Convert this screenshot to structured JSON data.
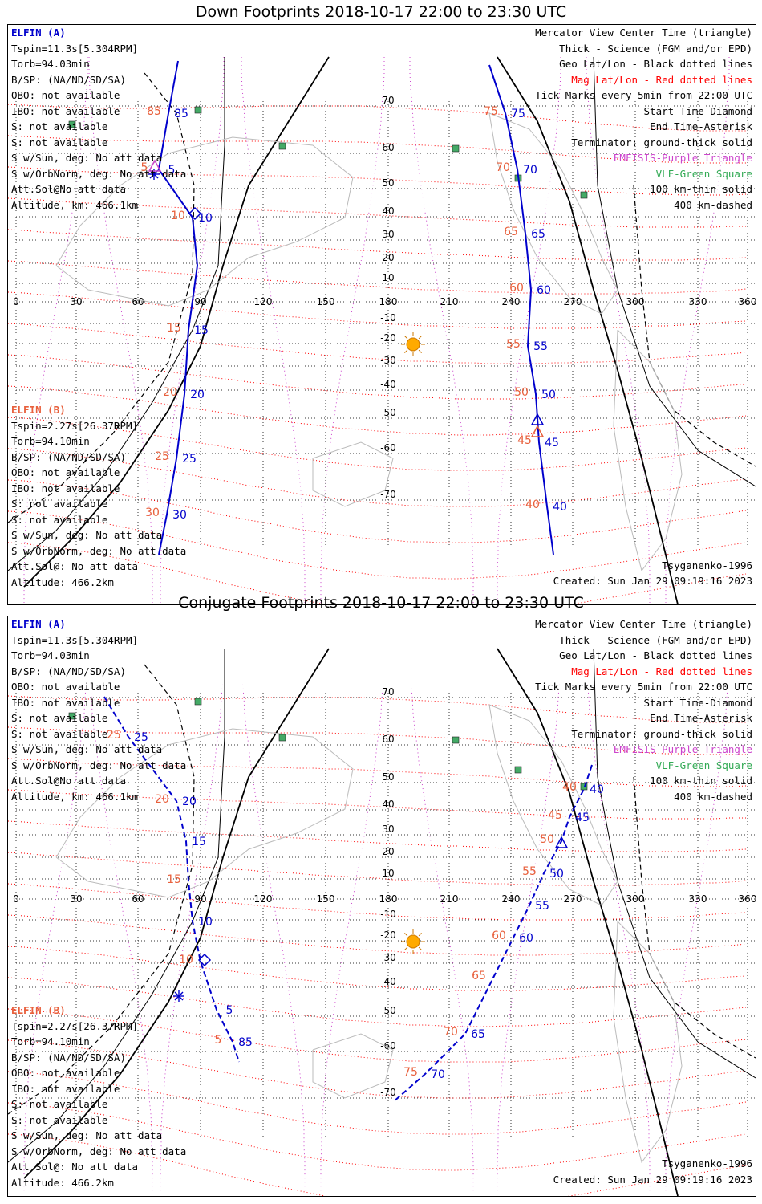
{
  "panels": [
    {
      "title": "Down Footprints 2018-10-17 22:00 to 23:30 UTC",
      "elfin_a": {
        "name": "ELFIN (A)",
        "lines": [
          "Tspin=11.3s[5.304RPM]",
          "Torb=94.03min",
          "B/SP: (NA/ND/SD/SA)",
          "OBO: not available",
          "IBO: not available",
          "S: not available",
          "S: not available",
          "S w/Sun, deg: No att data",
          "S w/OrbNorm, deg: No att data",
          "Att.Sol@No att data",
          "Altitude, km: 466.1km"
        ]
      },
      "elfin_b": {
        "name": "ELFIN (B)",
        "lines": [
          "Tspin=2.27s[26.37RPM]",
          "Torb=94.10min",
          "B/SP: (NA/ND/SD/SA)",
          "OBO: not available",
          "IBO: not available",
          "S: not available",
          "S: not available",
          "S w/Sun, deg: No att data",
          "S w/OrbNorm, deg: No att data",
          "Att.Sol@: No att data",
          "Altitude: 466.2km"
        ]
      },
      "legend": [
        {
          "text": "Mercator View Center Time (triangle)",
          "color": "#000000"
        },
        {
          "text": "Thick - Science (FGM and/or EPD)",
          "color": "#000000"
        },
        {
          "text": "Geo Lat/Lon - Black dotted lines",
          "color": "#000000"
        },
        {
          "text": "Mag Lat/Lon - Red dotted lines",
          "color": "#ff0000"
        },
        {
          "text": "Tick Marks every 5min from 22:00 UTC",
          "color": "#000000"
        },
        {
          "text": "Start Time-Diamond",
          "color": "#000000"
        },
        {
          "text": "End Time-Asterisk",
          "color": "#000000"
        },
        {
          "text": "Terminator: ground-thick solid",
          "color": "#000000"
        },
        {
          "text": "EMFISIS-Purple Triangle",
          "color": "#cc44cc"
        },
        {
          "text": "VLF-Green Square",
          "color": "#33aa55"
        },
        {
          "text": "100 km-thin solid",
          "color": "#000000"
        },
        {
          "text": "400 km-dashed",
          "color": "#000000"
        }
      ],
      "model": "Tsyganenko-1996",
      "created": "Created: Sun Jan 29 09:19:16 2023",
      "lon_labels": [
        "0",
        "30",
        "60",
        "90",
        "120",
        "150",
        "180",
        "210",
        "240",
        "270",
        "300",
        "330",
        "360"
      ],
      "lat_labels": [
        "70",
        "60",
        "50",
        "40",
        "30",
        "20",
        "10",
        "-10",
        "-20",
        "-30",
        "-40",
        "-50",
        "-60",
        "-70"
      ],
      "track_a_labels": [
        "85",
        "5",
        "10",
        "15",
        "20",
        "25",
        "30"
      ],
      "track_a_mag_labels": [
        "85",
        "5",
        "10",
        "15",
        "20",
        "25",
        "30"
      ],
      "track_b_labels": [
        "75",
        "70",
        "65",
        "60",
        "55",
        "50",
        "45",
        "40"
      ],
      "track_b_mag_labels": [
        "75",
        "70",
        "65",
        "60",
        "55",
        "50",
        "45",
        "40"
      ]
    },
    {
      "title": "Conjugate Footprints 2018-10-17 22:00 to 23:30 UTC",
      "elfin_a": {
        "name": "ELFIN (A)",
        "lines": [
          "Tspin=11.3s[5.304RPM]",
          "Torb=94.03min",
          "B/SP: (NA/ND/SD/SA)",
          "OBO: not available",
          "IBO: not available",
          "S: not available",
          "S: not available",
          "S w/Sun, deg: No att data",
          "S w/OrbNorm, deg: No att data",
          "Att.Sol@No att data",
          "Altitude, km: 466.1km"
        ]
      },
      "elfin_b": {
        "name": "ELFIN (B)",
        "lines": [
          "Tspin=2.27s[26.37RPM]",
          "Torb=94.10min",
          "B/SP: (NA/ND/SD/SA)",
          "OBO: not available",
          "IBO: not available",
          "S: not available",
          "S: not available",
          "S w/Sun, deg: No att data",
          "S w/OrbNorm, deg: No att data",
          "Att.Sol@: No att data",
          "Altitude: 466.2km"
        ]
      },
      "legend": [
        {
          "text": "Mercator View Center Time (triangle)",
          "color": "#000000"
        },
        {
          "text": "Thick - Science (FGM and/or EPD)",
          "color": "#000000"
        },
        {
          "text": "Geo Lat/Lon - Black dotted lines",
          "color": "#000000"
        },
        {
          "text": "Mag Lat/Lon - Red dotted lines",
          "color": "#ff0000"
        },
        {
          "text": "Tick Marks every 5min from 22:00 UTC",
          "color": "#000000"
        },
        {
          "text": "Start Time-Diamond",
          "color": "#000000"
        },
        {
          "text": "End Time-Asterisk",
          "color": "#000000"
        },
        {
          "text": "Terminator: ground-thick solid",
          "color": "#000000"
        },
        {
          "text": "EMFISIS-Purple Triangle",
          "color": "#cc44cc"
        },
        {
          "text": "VLF-Green Square",
          "color": "#33aa55"
        },
        {
          "text": "100 km-thin solid",
          "color": "#000000"
        },
        {
          "text": "400 km-dashed",
          "color": "#000000"
        }
      ],
      "model": "Tsyganenko-1996",
      "created": "Created: Sun Jan 29 09:19:16 2023",
      "lon_labels": [
        "0",
        "30",
        "60",
        "90",
        "120",
        "150",
        "180",
        "210",
        "240",
        "270",
        "300",
        "330",
        "360"
      ],
      "lat_labels": [
        "70",
        "60",
        "50",
        "40",
        "30",
        "20",
        "10",
        "-10",
        "-20",
        "-30",
        "-40",
        "-50",
        "-60",
        "-70"
      ],
      "track_a_labels": [
        "25",
        "20",
        "15",
        "10",
        "5",
        "85"
      ],
      "track_a_mag_labels": [
        "25",
        "20",
        "15",
        "10",
        "5"
      ],
      "track_b_labels": [
        "40",
        "45",
        "50",
        "55",
        "60",
        "65",
        "70"
      ],
      "track_b_mag_labels": [
        "40",
        "45",
        "50",
        "55",
        "60",
        "65",
        "70",
        "75"
      ]
    }
  ],
  "colors": {
    "track": "#0000cc",
    "mag_label": "#e8603c",
    "mag_grid": "#ff0000",
    "emfisis": "#cc44cc",
    "vlf": "#33aa55",
    "sun": "#ffaa00"
  }
}
